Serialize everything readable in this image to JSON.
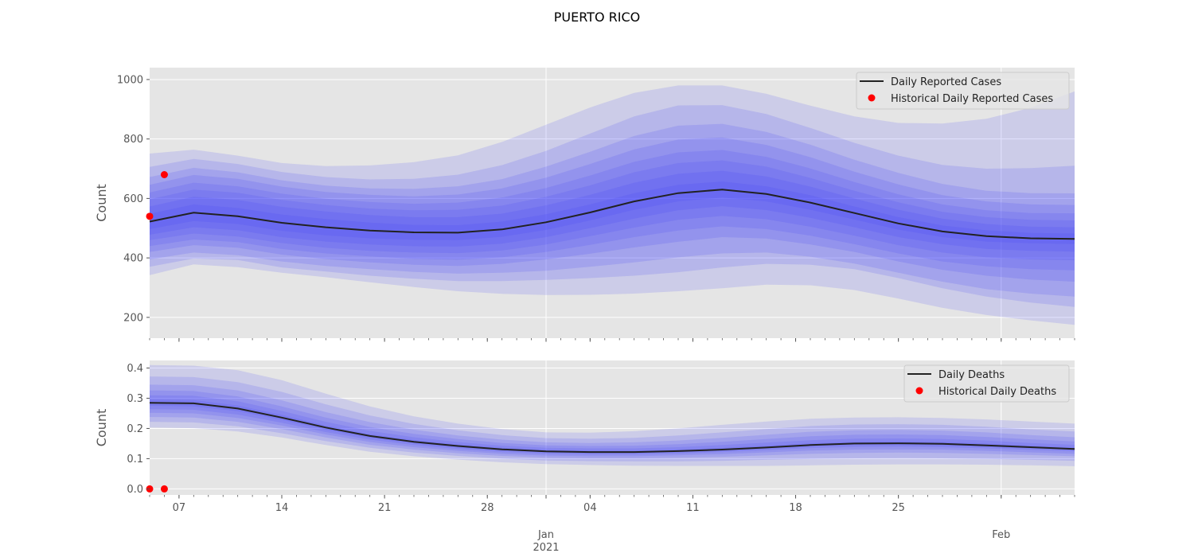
{
  "title": "PUERTO RICO",
  "colors": {
    "panel_bg": "#e5e5e5",
    "grid": "#ffffff",
    "band": "#3a3af5",
    "median_line": "#222222",
    "historical_points": "#ff0000",
    "tick_text": "#555555"
  },
  "chart_data": [
    {
      "type": "area",
      "name": "cases",
      "ylabel": "Count",
      "ylim": [
        130,
        1040
      ],
      "yticks": [
        200,
        400,
        600,
        800,
        1000
      ],
      "x_start": "2020-12-05",
      "x_end": "2021-02-06",
      "x_major_ticks": [
        {
          "date": "2020-12-07",
          "label": "07"
        },
        {
          "date": "2020-12-14",
          "label": "14"
        },
        {
          "date": "2020-12-21",
          "label": "21"
        },
        {
          "date": "2020-12-28",
          "label": "28"
        },
        {
          "date": "2021-01-01",
          "label": "Jan"
        },
        {
          "date": "2021-01-04",
          "label": "04"
        },
        {
          "date": "2021-01-11",
          "label": "11"
        },
        {
          "date": "2021-01-18",
          "label": "18"
        },
        {
          "date": "2021-01-25",
          "label": "25"
        },
        {
          "date": "2021-02-01",
          "label": "Feb"
        }
      ],
      "year_label": {
        "date": "2021-01-01",
        "label": "2021"
      },
      "grid": true,
      "legend_position": "upper right",
      "legend": [
        "Daily Reported Cases",
        "Historical Daily Reported Cases"
      ],
      "series": [
        {
          "name": "Daily Reported Cases",
          "style": "line",
          "x": [
            "2020-12-05",
            "2020-12-08",
            "2020-12-11",
            "2020-12-14",
            "2020-12-17",
            "2020-12-20",
            "2020-12-23",
            "2020-12-26",
            "2020-12-29",
            "2021-01-01",
            "2021-01-04",
            "2021-01-07",
            "2021-01-10",
            "2021-01-13",
            "2021-01-16",
            "2021-01-19",
            "2021-01-22",
            "2021-01-25",
            "2021-01-28",
            "2021-01-31",
            "2021-02-03",
            "2021-02-06"
          ],
          "values": [
            522,
            552,
            540,
            518,
            503,
            492,
            486,
            485,
            496,
            520,
            553,
            590,
            618,
            630,
            615,
            586,
            551,
            516,
            489,
            473,
            466,
            464
          ]
        },
        {
          "name": "Historical Daily Reported Cases",
          "style": "scatter",
          "x": [
            "2020-12-05",
            "2020-12-06"
          ],
          "values": [
            540,
            680
          ]
        }
      ],
      "bands": {
        "levels": [
          "Q1",
          "Q2",
          "Q3",
          "Q4",
          "Q5",
          "Q6",
          "Q7",
          "Q8",
          "Q9",
          "Q10",
          "Q11"
        ],
        "lower": [
          [
            342,
            378,
            369,
            350,
            335,
            318,
            302,
            288,
            279,
            275,
            276,
            280,
            288,
            298,
            310,
            308,
            292,
            263,
            232,
            208,
            190,
            175
          ],
          [
            370,
            398,
            393,
            368,
            354,
            340,
            330,
            322,
            322,
            326,
            332,
            340,
            352,
            368,
            380,
            377,
            362,
            332,
            298,
            270,
            250,
            235
          ],
          [
            395,
            418,
            409,
            388,
            373,
            362,
            353,
            347,
            350,
            357,
            370,
            385,
            402,
            415,
            418,
            404,
            381,
            350,
            320,
            295,
            280,
            270
          ],
          [
            420,
            443,
            434,
            411,
            396,
            385,
            377,
            373,
            380,
            395,
            414,
            435,
            454,
            470,
            465,
            445,
            420,
            388,
            360,
            340,
            327,
            320
          ],
          [
            440,
            462,
            453,
            430,
            415,
            405,
            397,
            394,
            402,
            420,
            444,
            470,
            492,
            506,
            497,
            475,
            446,
            415,
            388,
            372,
            362,
            358
          ],
          [
            460,
            482,
            472,
            450,
            434,
            424,
            418,
            416,
            425,
            445,
            473,
            502,
            528,
            541,
            530,
            505,
            475,
            443,
            418,
            402,
            395,
            392
          ],
          [
            478,
            503,
            493,
            470,
            455,
            445,
            439,
            438,
            448,
            470,
            500,
            532,
            560,
            574,
            561,
            535,
            503,
            470,
            446,
            430,
            424,
            421
          ],
          [
            497,
            524,
            514,
            491,
            476,
            466,
            461,
            460,
            471,
            494,
            526,
            562,
            590,
            603,
            590,
            562,
            529,
            495,
            470,
            455,
            449,
            447
          ]
        ],
        "upper": [
          [
            548,
            580,
            568,
            546,
            531,
            519,
            511,
            510,
            522,
            547,
            580,
            618,
            646,
            657,
            641,
            611,
            573,
            537,
            509,
            493,
            484,
            482
          ],
          [
            573,
            606,
            595,
            572,
            556,
            544,
            537,
            537,
            549,
            577,
            612,
            653,
            683,
            693,
            674,
            640,
            600,
            562,
            532,
            514,
            505,
            503
          ],
          [
            597,
            630,
            619,
            595,
            578,
            566,
            560,
            562,
            576,
            606,
            644,
            688,
            719,
            728,
            707,
            669,
            626,
            587,
            555,
            537,
            528,
            526
          ],
          [
            620,
            653,
            641,
            616,
            599,
            588,
            582,
            586,
            603,
            635,
            677,
            723,
            755,
            763,
            740,
            701,
            655,
            614,
            580,
            560,
            551,
            550
          ],
          [
            646,
            679,
            666,
            640,
            622,
            612,
            607,
            613,
            634,
            670,
            716,
            765,
            798,
            805,
            780,
            739,
            690,
            647,
            611,
            590,
            580,
            578
          ],
          [
            672,
            703,
            688,
            661,
            643,
            634,
            632,
            641,
            665,
            707,
            757,
            810,
            845,
            851,
            824,
            781,
            730,
            686,
            649,
            626,
            618,
            617
          ],
          [
            706,
            733,
            716,
            689,
            672,
            664,
            666,
            680,
            712,
            760,
            818,
            876,
            913,
            914,
            884,
            837,
            787,
            744,
            713,
            700,
            702,
            710
          ],
          [
            751,
            764,
            744,
            719,
            709,
            711,
            722,
            745,
            790,
            848,
            906,
            955,
            980,
            980,
            952,
            912,
            876,
            854,
            852,
            868,
            905,
            960
          ]
        ]
      }
    },
    {
      "type": "area",
      "name": "deaths",
      "ylabel": "Count",
      "ylim": [
        -0.02,
        0.425
      ],
      "yticks": [
        0.0,
        0.1,
        0.2,
        0.3,
        0.4
      ],
      "ytick_labels": [
        "0.0",
        "0.1",
        "0.2",
        "0.3",
        "0.4"
      ],
      "x_start": "2020-12-05",
      "x_end": "2021-02-06",
      "x_major_ticks": [
        {
          "date": "2020-12-07",
          "label": "07"
        },
        {
          "date": "2020-12-14",
          "label": "14"
        },
        {
          "date": "2020-12-21",
          "label": "21"
        },
        {
          "date": "2020-12-28",
          "label": "28"
        },
        {
          "date": "2021-01-01",
          "label": "Jan"
        },
        {
          "date": "2021-01-04",
          "label": "04"
        },
        {
          "date": "2021-01-11",
          "label": "11"
        },
        {
          "date": "2021-01-18",
          "label": "18"
        },
        {
          "date": "2021-01-25",
          "label": "25"
        },
        {
          "date": "2021-02-01",
          "label": "Feb"
        }
      ],
      "year_label": {
        "date": "2021-01-01",
        "label": "2021"
      },
      "grid": true,
      "legend_position": "upper right",
      "legend": [
        "Daily Deaths",
        "Historical Daily Deaths"
      ],
      "series": [
        {
          "name": "Daily Deaths",
          "style": "line",
          "x": [
            "2020-12-05",
            "2020-12-08",
            "2020-12-11",
            "2020-12-14",
            "2020-12-17",
            "2020-12-20",
            "2020-12-23",
            "2020-12-26",
            "2020-12-29",
            "2021-01-01",
            "2021-01-04",
            "2021-01-07",
            "2021-01-10",
            "2021-01-13",
            "2021-01-16",
            "2021-01-19",
            "2021-01-22",
            "2021-01-25",
            "2021-01-28",
            "2021-01-31",
            "2021-02-03",
            "2021-02-06"
          ],
          "values": [
            0.285,
            0.283,
            0.266,
            0.236,
            0.203,
            0.175,
            0.156,
            0.142,
            0.131,
            0.124,
            0.122,
            0.122,
            0.125,
            0.13,
            0.137,
            0.145,
            0.15,
            0.151,
            0.149,
            0.144,
            0.138,
            0.132
          ]
        },
        {
          "name": "Historical Daily Deaths",
          "style": "scatter",
          "x": [
            "2020-12-05",
            "2020-12-06"
          ],
          "values": [
            0.0,
            0.0
          ]
        }
      ],
      "bands": {
        "levels": [
          "Q1",
          "Q2",
          "Q3",
          "Q4",
          "Q5",
          "Q6",
          "Q7",
          "Q8",
          "Q9",
          "Q10",
          "Q11"
        ],
        "lower": [
          [
            0.203,
            0.201,
            0.19,
            0.17,
            0.145,
            0.123,
            0.108,
            0.097,
            0.088,
            0.082,
            0.079,
            0.077,
            0.076,
            0.076,
            0.076,
            0.078,
            0.08,
            0.081,
            0.081,
            0.08,
            0.078,
            0.075
          ],
          [
            0.222,
            0.22,
            0.207,
            0.184,
            0.158,
            0.136,
            0.12,
            0.109,
            0.1,
            0.094,
            0.092,
            0.091,
            0.091,
            0.093,
            0.096,
            0.099,
            0.101,
            0.102,
            0.101,
            0.099,
            0.096,
            0.093
          ],
          [
            0.238,
            0.236,
            0.222,
            0.198,
            0.17,
            0.146,
            0.13,
            0.118,
            0.109,
            0.103,
            0.101,
            0.101,
            0.103,
            0.106,
            0.111,
            0.116,
            0.119,
            0.12,
            0.119,
            0.116,
            0.112,
            0.108
          ],
          [
            0.252,
            0.25,
            0.235,
            0.21,
            0.18,
            0.155,
            0.138,
            0.126,
            0.116,
            0.11,
            0.108,
            0.108,
            0.111,
            0.115,
            0.121,
            0.127,
            0.13,
            0.131,
            0.13,
            0.126,
            0.121,
            0.116
          ],
          [
            0.264,
            0.262,
            0.246,
            0.219,
            0.188,
            0.163,
            0.145,
            0.132,
            0.122,
            0.116,
            0.114,
            0.114,
            0.117,
            0.122,
            0.128,
            0.135,
            0.139,
            0.14,
            0.138,
            0.134,
            0.129,
            0.124
          ],
          [
            0.275,
            0.273,
            0.257,
            0.228,
            0.196,
            0.169,
            0.151,
            0.137,
            0.127,
            0.12,
            0.118,
            0.118,
            0.121,
            0.126,
            0.133,
            0.141,
            0.145,
            0.146,
            0.144,
            0.139,
            0.134,
            0.128
          ]
        ],
        "upper": [
          [
            0.296,
            0.294,
            0.276,
            0.245,
            0.21,
            0.181,
            0.162,
            0.147,
            0.136,
            0.129,
            0.127,
            0.127,
            0.13,
            0.136,
            0.143,
            0.151,
            0.156,
            0.157,
            0.155,
            0.15,
            0.143,
            0.137
          ],
          [
            0.31,
            0.308,
            0.29,
            0.258,
            0.222,
            0.192,
            0.171,
            0.155,
            0.143,
            0.136,
            0.134,
            0.134,
            0.138,
            0.145,
            0.153,
            0.161,
            0.166,
            0.167,
            0.165,
            0.16,
            0.152,
            0.146
          ],
          [
            0.326,
            0.324,
            0.306,
            0.273,
            0.236,
            0.205,
            0.182,
            0.165,
            0.152,
            0.144,
            0.142,
            0.143,
            0.148,
            0.156,
            0.165,
            0.174,
            0.179,
            0.18,
            0.178,
            0.172,
            0.164,
            0.157
          ],
          [
            0.345,
            0.343,
            0.326,
            0.293,
            0.254,
            0.221,
            0.196,
            0.177,
            0.163,
            0.154,
            0.152,
            0.154,
            0.16,
            0.169,
            0.179,
            0.189,
            0.194,
            0.195,
            0.193,
            0.187,
            0.178,
            0.171
          ],
          [
            0.372,
            0.37,
            0.353,
            0.321,
            0.28,
            0.243,
            0.215,
            0.194,
            0.178,
            0.168,
            0.166,
            0.169,
            0.177,
            0.187,
            0.198,
            0.208,
            0.213,
            0.214,
            0.212,
            0.206,
            0.197,
            0.19
          ],
          [
            0.41,
            0.408,
            0.393,
            0.36,
            0.315,
            0.273,
            0.24,
            0.216,
            0.198,
            0.187,
            0.186,
            0.191,
            0.2,
            0.212,
            0.223,
            0.232,
            0.236,
            0.237,
            0.235,
            0.23,
            0.223,
            0.216
          ]
        ]
      }
    }
  ]
}
